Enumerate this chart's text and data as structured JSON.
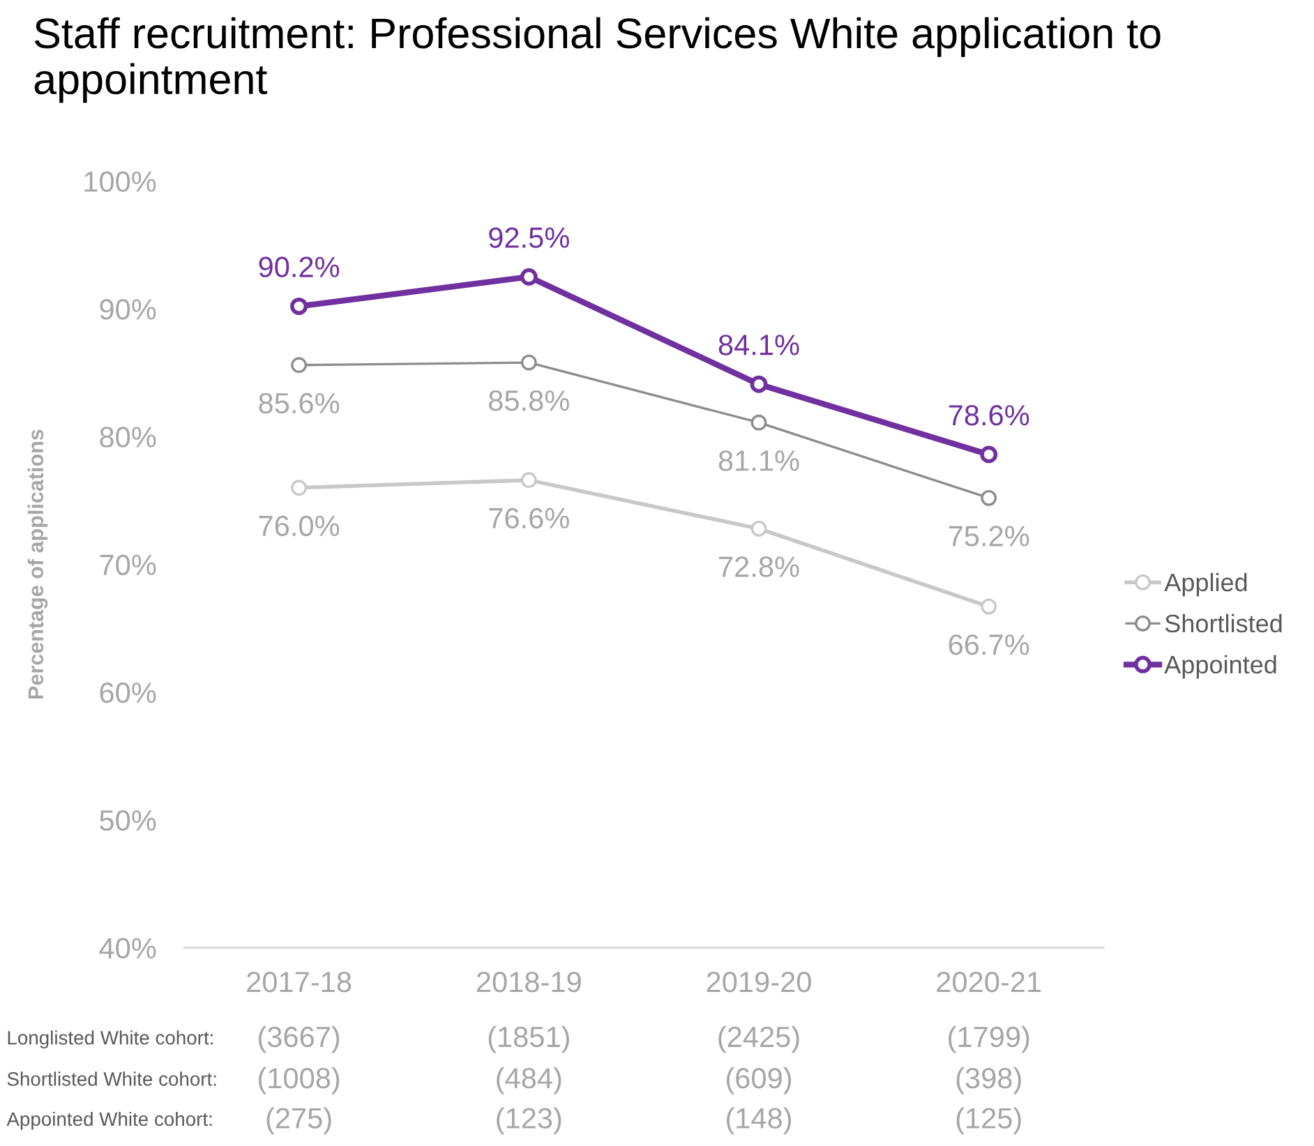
{
  "chart_data": {
    "type": "line",
    "title": "Staff recruitment: Professional Services White application to appointment",
    "ylabel": "Percentage of applications",
    "categories": [
      "2017-18",
      "2018-19",
      "2019-20",
      "2020-21"
    ],
    "series": [
      {
        "name": "Applied",
        "color": "#c8c8c8",
        "values": [
          76.0,
          76.6,
          72.8,
          66.7
        ],
        "value_labels": [
          "76.0%",
          "76.6%",
          "72.8%",
          "66.7%"
        ]
      },
      {
        "name": "Shortlisted",
        "color": "#8c8c8c",
        "values": [
          85.6,
          85.8,
          81.1,
          75.2
        ],
        "value_labels": [
          "85.6%",
          "85.8%",
          "81.1%",
          "75.2%"
        ]
      },
      {
        "name": "Appointed",
        "color": "#7030a0",
        "values": [
          90.2,
          92.5,
          84.1,
          78.6
        ],
        "value_labels": [
          "90.2%",
          "92.5%",
          "84.1%",
          "78.6%"
        ]
      }
    ],
    "ylim": [
      40,
      100
    ],
    "yticks": [
      {
        "value": 40,
        "label": "40%"
      },
      {
        "value": 50,
        "label": "50%"
      },
      {
        "value": 60,
        "label": "60%"
      },
      {
        "value": 70,
        "label": "70%"
      },
      {
        "value": 80,
        "label": "80%"
      },
      {
        "value": 90,
        "label": "90%"
      },
      {
        "value": 100,
        "label": "100%"
      }
    ],
    "grid": false,
    "legend": "right",
    "marker": "circle",
    "line_style": "solid",
    "annotations": [
      "Longlisted White cohort:",
      "(3667)",
      "(1851)",
      "(2425)",
      "(1799)",
      "Shortlisted White cohort:",
      "(1008)",
      "(484)",
      "(609)",
      "(398)",
      "Appointed White cohort:",
      "(275)",
      "(123)",
      "(148)",
      "(125)"
    ]
  }
}
